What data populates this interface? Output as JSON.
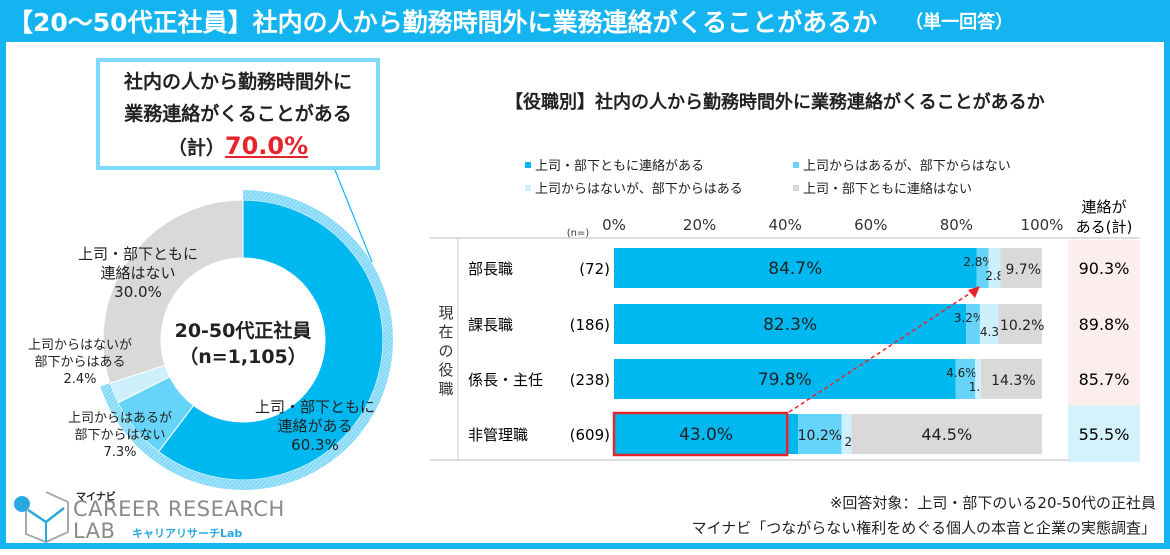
{
  "header": {
    "title": "【20～50代正社員】社内の人から勤務時間外に業務連絡がくることがあるか",
    "subtitle": "（単一回答）"
  },
  "callout": {
    "line1": "社内の人から勤務時間外に",
    "line2": "業務連絡がくることがある",
    "prefix": "（計）",
    "value": "70.0%"
  },
  "colors": {
    "accent": "#14b4f0",
    "both": "#00b8f0",
    "boss_only": "#66d4f8",
    "sub_only": "#cdf0fc",
    "none": "#d9d9d9",
    "highlight_red": "#e8242b",
    "total_pink": "#fdeeee",
    "total_blue": "#d4f2fc"
  },
  "chart_data": [
    {
      "type": "pie",
      "subtype": "donut",
      "center_label": [
        "20-50代正社員",
        "（n=1,105）"
      ],
      "slices": [
        {
          "label": "上司・部下ともに連絡がある",
          "value": 60.3,
          "display": "60.3%"
        },
        {
          "label": "上司からはあるが部下からはない",
          "value": 7.3,
          "display": "7.3%"
        },
        {
          "label": "上司からはないが部下からはある",
          "value": 2.4,
          "display": "2.4%"
        },
        {
          "label": "上司・部下ともに連絡はない",
          "value": 30.0,
          "display": "30.0%"
        }
      ],
      "slice_label_lines": [
        [
          "上司・部下ともに",
          "連絡がある",
          "60.3%"
        ],
        [
          "上司からはあるが",
          "部下からはない",
          "7.3%"
        ],
        [
          "上司からはないが",
          "部下からはある",
          "2.4%"
        ],
        [
          "上司・部下ともに",
          "連絡はない",
          "30.0%"
        ]
      ]
    },
    {
      "type": "bar",
      "subtype": "stacked-horizontal-100",
      "title": "【役職別】社内の人から勤務時間外に業務連絡がくることがあるか",
      "legend": [
        "上司・部下ともに連絡がある",
        "上司からはあるが、部下からはない",
        "上司からはないが、部下からはある",
        "上司・部下ともに連絡はない"
      ],
      "xlim": [
        0,
        100
      ],
      "xticks": [
        "0%",
        "20%",
        "40%",
        "60%",
        "80%",
        "100%"
      ],
      "n_label": "(n=)",
      "group_label": "現在の役職",
      "total_header": [
        "連絡が",
        "ある(計)"
      ],
      "categories": [
        "部長職",
        "課長職",
        "係長・主任",
        "非管理職"
      ],
      "n": [
        "(72)",
        "(186)",
        "(238)",
        "(609)"
      ],
      "series": [
        {
          "name": "上司・部下ともに連絡がある",
          "values": [
            84.7,
            82.3,
            79.8,
            43.0
          ]
        },
        {
          "name": "上司からはあるが、部下からはない",
          "values": [
            2.8,
            3.2,
            4.6,
            10.2
          ]
        },
        {
          "name": "上司からはないが、部下からはある",
          "values": [
            2.8,
            4.3,
            1.3,
            2.3
          ]
        },
        {
          "name": "上司・部下ともに連絡はない",
          "values": [
            9.7,
            10.2,
            14.3,
            44.5
          ]
        }
      ],
      "totals": [
        "90.3%",
        "89.8%",
        "85.7%",
        "55.5%"
      ]
    }
  ],
  "footer": {
    "target": "※回答対象：上司・部下のいる20-50代の正社員",
    "source": "マイナビ「つながらない権利をめぐる個人の本音と企業の実態調査」"
  },
  "logo": {
    "small": "マイナビ",
    "line1": "CAREER RESEARCH",
    "line2": "LAB",
    "kana": "キャリアリサーチLab"
  }
}
